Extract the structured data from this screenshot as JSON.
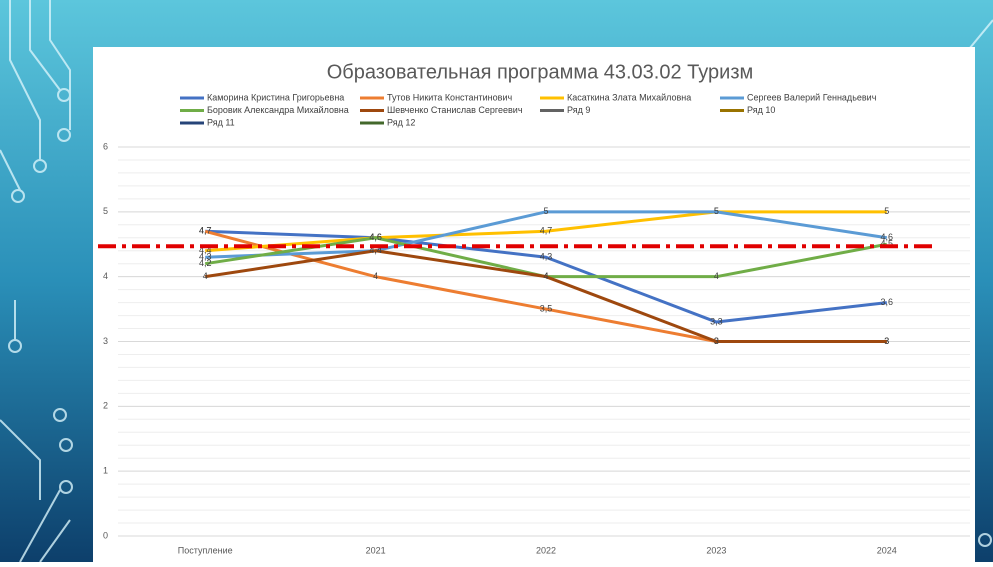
{
  "chart_data": {
    "type": "line",
    "title": "Образовательная программа 43.03.02 Туризм",
    "categories": [
      "Поступление",
      "2021",
      "2022",
      "2023",
      "2024"
    ],
    "series": [
      {
        "name": "Каморина Кристина Григорьевна",
        "color": "#4472c4",
        "values": [
          4.7,
          4.6,
          4.3,
          3.3,
          3.6
        ],
        "value_labels": [
          "4,7",
          "4,6",
          "4,3",
          "3,3",
          "3,6"
        ]
      },
      {
        "name": "Тутов Никита Константинович",
        "color": "#ed7d31",
        "values": [
          4.7,
          4,
          3.5,
          3,
          3
        ],
        "value_labels": [
          "4,7",
          "4",
          "3,5",
          "3",
          "3"
        ]
      },
      {
        "name": "Касаткина Злата Михайловна",
        "color": "#ffc000",
        "values": [
          4.4,
          4.6,
          4.7,
          5,
          5
        ],
        "value_labels": [
          "4,4",
          "4,6",
          "4,7",
          "5",
          "5"
        ]
      },
      {
        "name": "Сергеев Валерий Геннадьевич",
        "color": "#5b9bd5",
        "values": [
          4.3,
          4.4,
          5,
          5,
          4.6
        ],
        "value_labels": [
          "4,3",
          "4,4",
          "5",
          "5",
          "4,6"
        ]
      },
      {
        "name": "Боровик Александра Михайловна",
        "color": "#70ad47",
        "values": [
          4.2,
          4.6,
          4,
          4,
          4.5
        ],
        "value_labels": [
          "4,2",
          "4,6",
          "4",
          "4",
          "4,5"
        ]
      },
      {
        "name": "Шевченко Станислав Сергеевич",
        "color": "#9e480e",
        "values": [
          4,
          4.4,
          4,
          3,
          3
        ],
        "value_labels": [
          "4",
          "4,4",
          "4",
          "3",
          "3"
        ]
      },
      {
        "name": "Ряд 9",
        "color": "#636363",
        "values": [
          null,
          null,
          null,
          null,
          null
        ]
      },
      {
        "name": "Ряд 10",
        "color": "#997300",
        "values": [
          null,
          null,
          null,
          null,
          null
        ]
      },
      {
        "name": "Ряд 11",
        "color": "#264478",
        "values": [
          null,
          null,
          null,
          null,
          null
        ]
      },
      {
        "name": "Ряд 12",
        "color": "#43682b",
        "values": [
          null,
          null,
          null,
          null,
          null
        ]
      }
    ],
    "ylim": [
      0,
      6
    ],
    "yticks": [
      0,
      1,
      2,
      3,
      4,
      5,
      6
    ],
    "grid": true,
    "minor_grid_step": 0.2,
    "legend": "top",
    "reference_line": {
      "value": 4.47,
      "color": "#e00000"
    }
  }
}
